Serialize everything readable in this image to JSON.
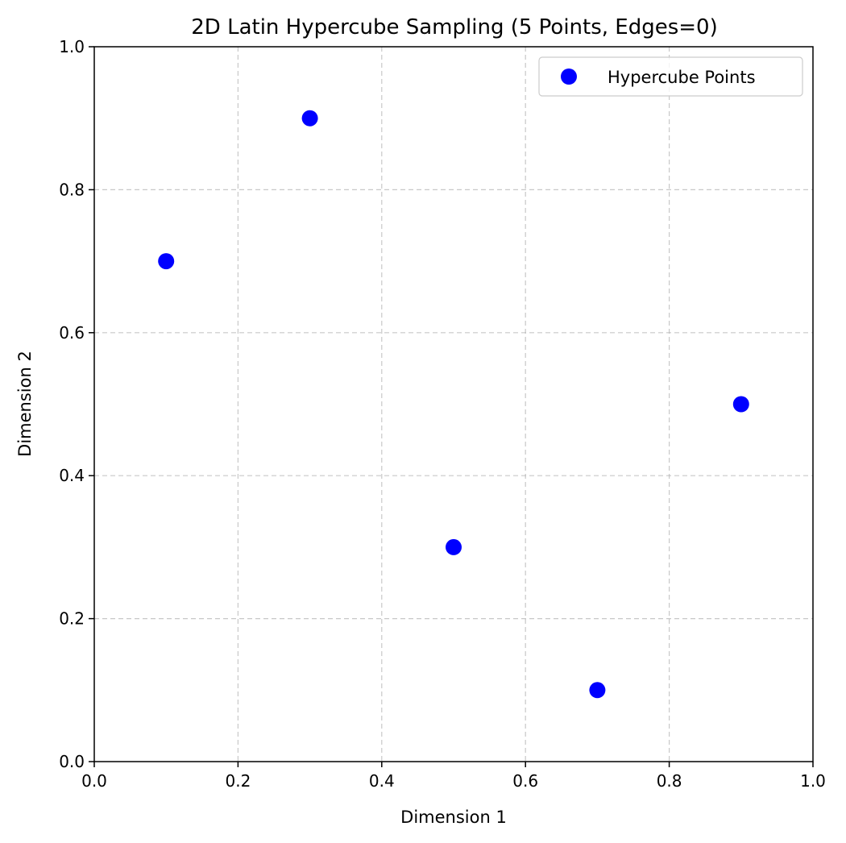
{
  "chart_data": {
    "type": "scatter",
    "title": "2D Latin Hypercube Sampling (5 Points, Edges=0)",
    "xlabel": "Dimension 1",
    "ylabel": "Dimension 2",
    "xlim": [
      0.0,
      1.0
    ],
    "ylim": [
      0.0,
      1.0
    ],
    "xticks": [
      "0.0",
      "0.2",
      "0.4",
      "0.6",
      "0.8",
      "1.0"
    ],
    "yticks": [
      "0.0",
      "0.2",
      "0.4",
      "0.6",
      "0.8",
      "1.0"
    ],
    "grid": true,
    "legend_position": "top-right",
    "series": [
      {
        "name": "Hypercube Points",
        "color": "#0000ff",
        "points": [
          {
            "x": 0.1,
            "y": 0.7
          },
          {
            "x": 0.3,
            "y": 0.9
          },
          {
            "x": 0.5,
            "y": 0.3
          },
          {
            "x": 0.7,
            "y": 0.1
          },
          {
            "x": 0.9,
            "y": 0.5
          }
        ]
      }
    ]
  }
}
